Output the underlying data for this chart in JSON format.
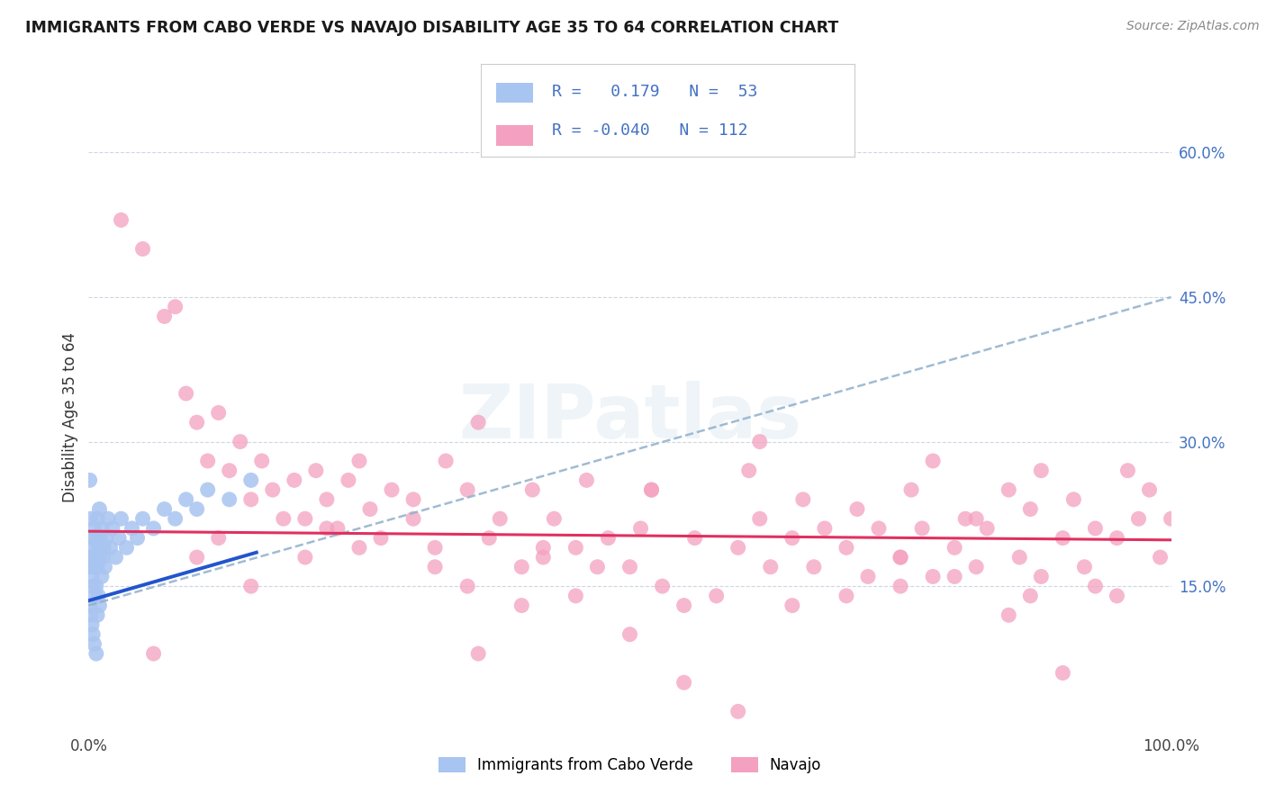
{
  "title": "IMMIGRANTS FROM CABO VERDE VS NAVAJO DISABILITY AGE 35 TO 64 CORRELATION CHART",
  "source": "Source: ZipAtlas.com",
  "ylabel": "Disability Age 35 to 64",
  "ytick_labels": [
    "15.0%",
    "30.0%",
    "45.0%",
    "60.0%"
  ],
  "ytick_values": [
    0.15,
    0.3,
    0.45,
    0.6
  ],
  "xlim": [
    0.0,
    1.0
  ],
  "ylim": [
    0.0,
    0.65
  ],
  "cabo_verde_R": 0.179,
  "cabo_verde_N": 53,
  "navajo_R": -0.04,
  "navajo_N": 112,
  "cabo_verde_color": "#a8c4f0",
  "navajo_color": "#f4a0c0",
  "cabo_verde_line_color": "#2255cc",
  "navajo_line_color": "#e03060",
  "trend_dash_color": "#90b0cc",
  "watermark": "ZIPatlas",
  "cabo_verde_x": [
    0.001,
    0.001,
    0.001,
    0.002,
    0.002,
    0.002,
    0.003,
    0.003,
    0.003,
    0.004,
    0.004,
    0.004,
    0.005,
    0.005,
    0.005,
    0.006,
    0.006,
    0.007,
    0.007,
    0.007,
    0.008,
    0.008,
    0.008,
    0.009,
    0.009,
    0.01,
    0.01,
    0.01,
    0.011,
    0.012,
    0.012,
    0.013,
    0.014,
    0.015,
    0.016,
    0.018,
    0.02,
    0.022,
    0.025,
    0.028,
    0.03,
    0.035,
    0.04,
    0.045,
    0.05,
    0.06,
    0.07,
    0.08,
    0.09,
    0.1,
    0.11,
    0.13,
    0.15
  ],
  "cabo_verde_y": [
    0.26,
    0.18,
    0.13,
    0.22,
    0.17,
    0.12,
    0.2,
    0.16,
    0.11,
    0.19,
    0.15,
    0.1,
    0.21,
    0.17,
    0.09,
    0.18,
    0.14,
    0.2,
    0.15,
    0.08,
    0.22,
    0.17,
    0.12,
    0.19,
    0.14,
    0.23,
    0.18,
    0.13,
    0.2,
    0.21,
    0.16,
    0.18,
    0.19,
    0.17,
    0.2,
    0.22,
    0.19,
    0.21,
    0.18,
    0.2,
    0.22,
    0.19,
    0.21,
    0.2,
    0.22,
    0.21,
    0.23,
    0.22,
    0.24,
    0.23,
    0.25,
    0.24,
    0.26
  ],
  "navajo_x": [
    0.03,
    0.05,
    0.07,
    0.08,
    0.09,
    0.1,
    0.11,
    0.12,
    0.13,
    0.14,
    0.15,
    0.16,
    0.17,
    0.18,
    0.19,
    0.2,
    0.21,
    0.22,
    0.23,
    0.24,
    0.25,
    0.26,
    0.27,
    0.28,
    0.3,
    0.32,
    0.33,
    0.35,
    0.36,
    0.37,
    0.38,
    0.4,
    0.41,
    0.42,
    0.43,
    0.45,
    0.46,
    0.47,
    0.48,
    0.5,
    0.51,
    0.52,
    0.53,
    0.55,
    0.56,
    0.58,
    0.6,
    0.61,
    0.62,
    0.63,
    0.65,
    0.66,
    0.67,
    0.68,
    0.7,
    0.71,
    0.72,
    0.73,
    0.75,
    0.76,
    0.77,
    0.78,
    0.8,
    0.81,
    0.82,
    0.83,
    0.85,
    0.86,
    0.87,
    0.88,
    0.9,
    0.91,
    0.92,
    0.93,
    0.95,
    0.96,
    0.97,
    0.98,
    0.99,
    1.0,
    0.06,
    0.36,
    0.1,
    0.15,
    0.2,
    0.55,
    0.6,
    0.7,
    0.8,
    0.85,
    0.9,
    0.95,
    0.4,
    0.5,
    0.35,
    0.65,
    0.75,
    0.87,
    0.93,
    0.25,
    0.3,
    0.45,
    0.75,
    0.88,
    0.82,
    0.78,
    0.62,
    0.52,
    0.42,
    0.32,
    0.22,
    0.12
  ],
  "navajo_y": [
    0.53,
    0.5,
    0.43,
    0.44,
    0.35,
    0.32,
    0.28,
    0.33,
    0.27,
    0.3,
    0.24,
    0.28,
    0.25,
    0.22,
    0.26,
    0.22,
    0.27,
    0.24,
    0.21,
    0.26,
    0.19,
    0.23,
    0.2,
    0.25,
    0.22,
    0.19,
    0.28,
    0.25,
    0.32,
    0.2,
    0.22,
    0.17,
    0.25,
    0.18,
    0.22,
    0.19,
    0.26,
    0.17,
    0.2,
    0.17,
    0.21,
    0.25,
    0.15,
    0.13,
    0.2,
    0.14,
    0.19,
    0.27,
    0.22,
    0.17,
    0.2,
    0.24,
    0.17,
    0.21,
    0.19,
    0.23,
    0.16,
    0.21,
    0.18,
    0.25,
    0.21,
    0.16,
    0.19,
    0.22,
    0.17,
    0.21,
    0.25,
    0.18,
    0.23,
    0.16,
    0.2,
    0.24,
    0.17,
    0.21,
    0.14,
    0.27,
    0.22,
    0.25,
    0.18,
    0.22,
    0.08,
    0.08,
    0.18,
    0.15,
    0.18,
    0.05,
    0.02,
    0.14,
    0.16,
    0.12,
    0.06,
    0.2,
    0.13,
    0.1,
    0.15,
    0.13,
    0.15,
    0.14,
    0.15,
    0.28,
    0.24,
    0.14,
    0.18,
    0.27,
    0.22,
    0.28,
    0.3,
    0.25,
    0.19,
    0.17,
    0.21,
    0.2
  ]
}
